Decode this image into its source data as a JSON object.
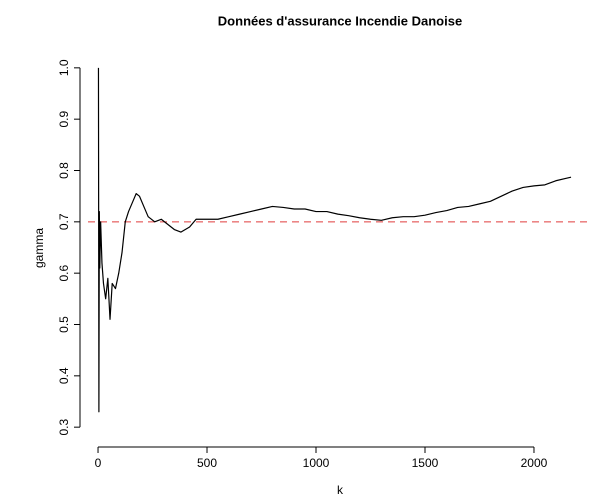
{
  "chart_data": {
    "type": "line",
    "title": "Données d'assurance Incendie Danoise",
    "xlabel": "k",
    "ylabel": "gamma",
    "x": [
      2,
      4,
      6,
      8,
      12,
      18,
      25,
      35,
      45,
      55,
      65,
      80,
      95,
      110,
      125,
      140,
      160,
      175,
      190,
      210,
      230,
      260,
      290,
      320,
      350,
      380,
      420,
      450,
      500,
      550,
      600,
      650,
      700,
      750,
      800,
      850,
      900,
      950,
      1000,
      1050,
      1100,
      1150,
      1200,
      1250,
      1300,
      1350,
      1400,
      1450,
      1500,
      1550,
      1600,
      1650,
      1700,
      1750,
      1800,
      1850,
      1900,
      1950,
      2000,
      2050,
      2100,
      2150,
      2170
    ],
    "values": [
      1.0,
      0.33,
      0.72,
      0.61,
      0.7,
      0.62,
      0.58,
      0.55,
      0.59,
      0.51,
      0.58,
      0.57,
      0.6,
      0.64,
      0.7,
      0.72,
      0.74,
      0.755,
      0.75,
      0.73,
      0.71,
      0.7,
      0.705,
      0.695,
      0.685,
      0.68,
      0.69,
      0.705,
      0.705,
      0.705,
      0.71,
      0.715,
      0.72,
      0.725,
      0.73,
      0.728,
      0.725,
      0.725,
      0.72,
      0.72,
      0.715,
      0.712,
      0.708,
      0.705,
      0.703,
      0.708,
      0.71,
      0.71,
      0.713,
      0.718,
      0.722,
      0.728,
      0.73,
      0.735,
      0.74,
      0.75,
      0.76,
      0.767,
      0.77,
      0.772,
      0.78,
      0.785,
      0.787
    ],
    "color": "#000000",
    "hline": {
      "value": 0.7,
      "color": "#e03c3c"
    },
    "xlim": [
      -46,
      2257
    ],
    "xticks": [
      0,
      500,
      1000,
      1500,
      2000
    ],
    "ylim": [
      0.275,
      1.025
    ],
    "yticks": [
      0.3,
      0.4,
      0.5,
      0.6,
      0.7,
      0.8,
      0.9,
      {
        "value": 1.0,
        "label": "1.0"
      }
    ],
    "grid": false
  }
}
